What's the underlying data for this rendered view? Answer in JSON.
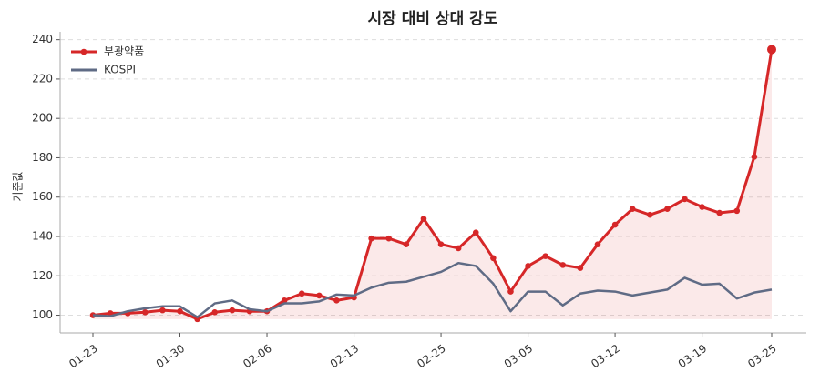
{
  "chart_data": {
    "type": "line",
    "title": "시장 대비 상대 강도",
    "y_label": "기준값",
    "categories": [
      "01-23",
      null,
      null,
      null,
      null,
      "01-30",
      null,
      null,
      null,
      null,
      "02-06",
      null,
      null,
      null,
      null,
      "02-13",
      null,
      null,
      null,
      null,
      "02-25",
      null,
      null,
      null,
      null,
      "03-05",
      null,
      null,
      null,
      null,
      "03-12",
      null,
      null,
      null,
      null,
      "03-19",
      null,
      null,
      null,
      "03-25"
    ],
    "series": [
      {
        "name": "부광약품",
        "color": "#d62728",
        "values": [
          100,
          101,
          101,
          101.5,
          102.5,
          102,
          98,
          101.5,
          102.5,
          102,
          102,
          107.5,
          111,
          110,
          107.5,
          109,
          139,
          139,
          136,
          149,
          136,
          134,
          142,
          129,
          112,
          125,
          130,
          125.5,
          124,
          136,
          146,
          154,
          151,
          154,
          159,
          155,
          152,
          153,
          180.5,
          235
        ],
        "markers": true,
        "fill": true
      },
      {
        "name": "KOSPI",
        "color": "#5f6b85",
        "values": [
          100,
          99.5,
          102,
          103.5,
          104.5,
          104.5,
          99,
          106,
          107.5,
          103,
          102,
          106,
          106,
          107,
          110.5,
          110,
          114,
          116.5,
          117,
          119.5,
          122,
          126.5,
          125,
          116,
          102,
          112,
          112,
          105,
          111,
          112.5,
          112,
          110,
          111.5,
          113,
          119,
          115.5,
          116,
          108.5,
          111.5,
          113
        ],
        "markers": false,
        "fill": false
      }
    ],
    "ylim": [
      91,
      244
    ],
    "yticks": [
      100,
      120,
      140,
      160,
      180,
      200,
      220,
      240
    ],
    "grid": true,
    "legend": "upper-left"
  }
}
